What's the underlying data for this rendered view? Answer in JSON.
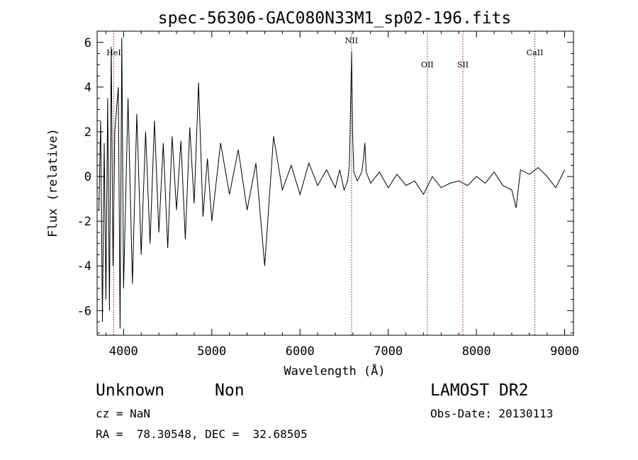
{
  "chart_data": {
    "type": "line",
    "title": "spec-56306-GAC080N33M1_sp02-196.fits",
    "xlabel": "Wavelength (Å)",
    "ylabel": "Flux (relative)",
    "xlim": [
      3700,
      9100
    ],
    "ylim": [
      -7.1,
      6.5
    ],
    "xticks": [
      4000,
      5000,
      6000,
      7000,
      8000,
      9000
    ],
    "yticks": [
      -6,
      -4,
      -2,
      0,
      2,
      4,
      6
    ],
    "grid": false,
    "legend": "none",
    "line_color": "#000000",
    "marker_color": "#8b1a1a",
    "lines": [
      {
        "label": "HeI",
        "wavelength": 3889
      },
      {
        "label": "NII",
        "wavelength": 6584
      },
      {
        "label": "OII",
        "wavelength": 7443
      },
      {
        "label": "SII",
        "wavelength": 7846
      },
      {
        "label": "CaII",
        "wavelength": 8662
      }
    ],
    "series": [
      {
        "x": [
          3720,
          3740,
          3760,
          3780,
          3800,
          3820,
          3840,
          3860,
          3880,
          3900,
          3920,
          3940,
          3960,
          3980,
          4000,
          4050,
          4100,
          4150,
          4200,
          4250,
          4300,
          4350,
          4400,
          4450,
          4500,
          4550,
          4600,
          4650,
          4700,
          4750,
          4800,
          4850,
          4900,
          4950,
          5000,
          5100,
          5200,
          5300,
          5400,
          5500,
          5600,
          5700,
          5800,
          5900,
          6000,
          6100,
          6200,
          6300,
          6400,
          6450,
          6500,
          6540,
          6560,
          6575,
          6585,
          6595,
          6610,
          6650,
          6700,
          6720,
          6735,
          6750,
          6800,
          6900,
          7000,
          7100,
          7200,
          7300,
          7400,
          7500,
          7600,
          7700,
          7800,
          7900,
          8000,
          8100,
          8200,
          8300,
          8400,
          8450,
          8500,
          8600,
          8700,
          8800,
          8900,
          9000
        ],
        "y": [
          -1.5,
          2.5,
          -6.5,
          1.5,
          -5.5,
          3.5,
          -6.0,
          5.8,
          -4.0,
          2.0,
          3.0,
          4.0,
          -6.8,
          6.2,
          -5.0,
          3.5,
          -4.8,
          2.8,
          -3.5,
          2.0,
          -3.0,
          2.5,
          -2.5,
          1.5,
          -3.2,
          1.8,
          -1.5,
          1.6,
          -2.8,
          2.2,
          -1.2,
          4.2,
          -1.8,
          0.8,
          -2.0,
          1.5,
          -0.8,
          1.2,
          -1.5,
          0.6,
          -4.0,
          1.8,
          -0.6,
          0.5,
          -0.8,
          0.6,
          -0.4,
          0.3,
          -0.5,
          0.3,
          -0.6,
          -0.2,
          0.5,
          3.5,
          5.6,
          2.0,
          0.2,
          -0.2,
          0.2,
          0.8,
          1.5,
          0.2,
          -0.3,
          0.2,
          -0.5,
          0.1,
          -0.4,
          -0.2,
          -0.8,
          0.0,
          -0.5,
          -0.3,
          -0.2,
          -0.4,
          0.0,
          -0.3,
          0.2,
          -0.4,
          -0.6,
          -1.4,
          0.3,
          0.1,
          0.4,
          0.0,
          -0.5,
          0.3
        ]
      }
    ]
  },
  "info": {
    "object_class": "Unknown",
    "subclass": "Non",
    "cz": "cz = NaN",
    "coords": "RA =  78.30548, DEC =  32.68505",
    "survey": "LAMOST DR2",
    "obs_date": "Obs-Date: 20130113"
  }
}
